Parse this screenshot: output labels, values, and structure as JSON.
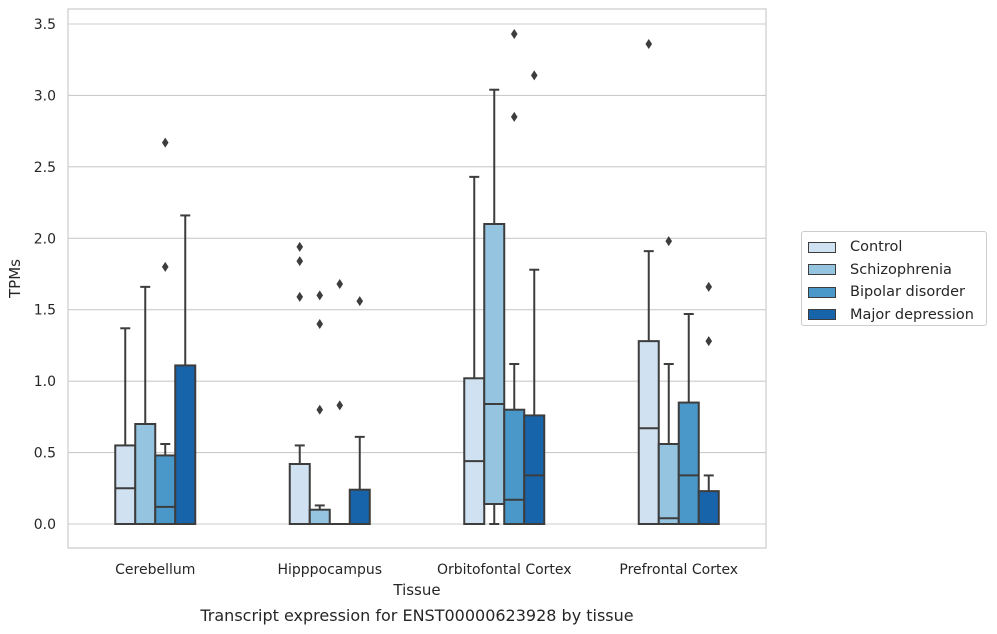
{
  "chart_data": {
    "type": "box",
    "caption": "Transcript expression for ENST00000623928 by tissue",
    "xlabel": "Tissue",
    "ylabel": "TPMs",
    "ylim": [
      -0.17,
      3.6
    ],
    "yticks": [
      0.0,
      0.5,
      1.0,
      1.5,
      2.0,
      2.5,
      3.0,
      3.5
    ],
    "ytick_labels": [
      "0.0",
      "0.5",
      "1.0",
      "1.5",
      "2.0",
      "2.5",
      "3.0",
      "3.5"
    ],
    "grid": "horizontal",
    "legend_position": "right",
    "categories": [
      "Cerebellum",
      "Hipppocampus",
      "Orbitofontal Cortex",
      "Prefrontal Cortex"
    ],
    "series": [
      {
        "name": "Control",
        "color": "#d0e1f2",
        "boxes": [
          {
            "category": "Cerebellum",
            "whislo": 0.0,
            "q1": 0.0,
            "med": 0.25,
            "q3": 0.55,
            "whishi": 1.37,
            "fliers": []
          },
          {
            "category": "Hipppocampus",
            "whislo": 0.0,
            "q1": 0.0,
            "med": 0.0,
            "q3": 0.42,
            "whishi": 0.55,
            "fliers": [
              1.59,
              1.84,
              1.94
            ]
          },
          {
            "category": "Orbitofontal Cortex",
            "whislo": 0.0,
            "q1": 0.0,
            "med": 0.44,
            "q3": 1.02,
            "whishi": 2.43,
            "fliers": []
          },
          {
            "category": "Prefrontal Cortex",
            "whislo": 0.0,
            "q1": 0.0,
            "med": 0.67,
            "q3": 1.28,
            "whishi": 1.91,
            "fliers": [
              3.36
            ]
          }
        ]
      },
      {
        "name": "Schizophrenia",
        "color": "#94c4df",
        "boxes": [
          {
            "category": "Cerebellum",
            "whislo": 0.0,
            "q1": 0.0,
            "med": 0.0,
            "q3": 0.7,
            "whishi": 1.66,
            "fliers": []
          },
          {
            "category": "Hipppocampus",
            "whislo": 0.0,
            "q1": 0.0,
            "med": 0.0,
            "q3": 0.1,
            "whishi": 0.13,
            "fliers": [
              0.8,
              1.4,
              1.6
            ]
          },
          {
            "category": "Orbitofontal Cortex",
            "whislo": 0.0,
            "q1": 0.14,
            "med": 0.84,
            "q3": 2.1,
            "whishi": 3.04,
            "fliers": []
          },
          {
            "category": "Prefrontal Cortex",
            "whislo": 0.0,
            "q1": 0.0,
            "med": 0.04,
            "q3": 0.56,
            "whishi": 1.12,
            "fliers": [
              1.98
            ]
          }
        ]
      },
      {
        "name": "Bipolar disorder",
        "color": "#4a98c9",
        "boxes": [
          {
            "category": "Cerebellum",
            "whislo": 0.0,
            "q1": 0.0,
            "med": 0.12,
            "q3": 0.48,
            "whishi": 0.56,
            "fliers": [
              1.8,
              2.67
            ]
          },
          {
            "category": "Hipppocampus",
            "whislo": 0.0,
            "q1": 0.0,
            "med": 0.0,
            "q3": 0.0,
            "whishi": 0.0,
            "fliers": [
              0.83,
              1.68
            ]
          },
          {
            "category": "Orbitofontal Cortex",
            "whislo": 0.0,
            "q1": 0.0,
            "med": 0.17,
            "q3": 0.8,
            "whishi": 1.12,
            "fliers": [
              2.85,
              3.43
            ]
          },
          {
            "category": "Prefrontal Cortex",
            "whislo": 0.0,
            "q1": 0.0,
            "med": 0.34,
            "q3": 0.85,
            "whishi": 1.47,
            "fliers": []
          }
        ]
      },
      {
        "name": "Major depression",
        "color": "#1764ab",
        "boxes": [
          {
            "category": "Cerebellum",
            "whislo": 0.0,
            "q1": 0.0,
            "med": 0.0,
            "q3": 1.11,
            "whishi": 2.16,
            "fliers": []
          },
          {
            "category": "Hipppocampus",
            "whislo": 0.0,
            "q1": 0.0,
            "med": 0.0,
            "q3": 0.24,
            "whishi": 0.61,
            "fliers": [
              1.56
            ]
          },
          {
            "category": "Orbitofontal Cortex",
            "whislo": 0.0,
            "q1": 0.0,
            "med": 0.34,
            "q3": 0.76,
            "whishi": 1.78,
            "fliers": [
              3.14
            ]
          },
          {
            "category": "Prefrontal Cortex",
            "whislo": 0.0,
            "q1": 0.0,
            "med": 0.0,
            "q3": 0.23,
            "whishi": 0.34,
            "fliers": [
              1.28,
              1.66
            ]
          }
        ]
      }
    ]
  }
}
